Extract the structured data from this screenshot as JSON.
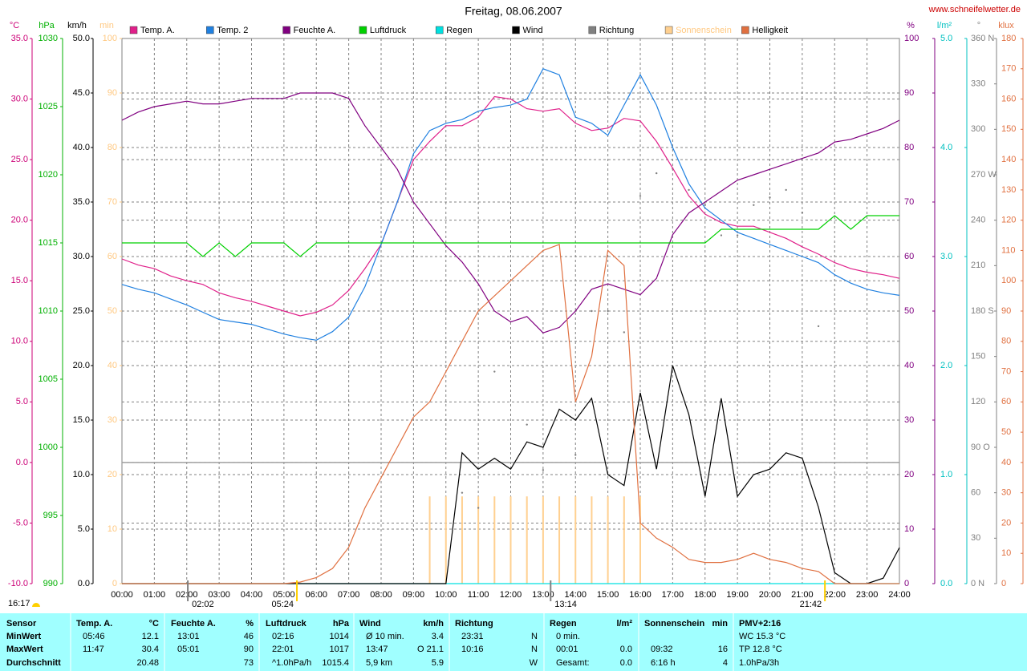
{
  "chart_data": {
    "type": "line",
    "title": "Freitag, 08.06.2007",
    "source": "www.schneifelwetter.de",
    "daylight": "16:17",
    "xlim": [
      0,
      24
    ],
    "xticks": [
      {
        "value": 0,
        "label": "00:00"
      },
      {
        "value": 1,
        "label": "01:00"
      },
      {
        "value": 2,
        "label": "02:00"
      },
      {
        "value": 3,
        "label": "03:00"
      },
      {
        "value": 4,
        "label": "04:00"
      },
      {
        "value": 5,
        "label": "05:00"
      },
      {
        "value": 6,
        "label": "06:00"
      },
      {
        "value": 7,
        "label": "07:00"
      },
      {
        "value": 8,
        "label": "08:00"
      },
      {
        "value": 9,
        "label": "09:00"
      },
      {
        "value": 10,
        "label": "10:00"
      },
      {
        "value": 11,
        "label": "11:00"
      },
      {
        "value": 12,
        "label": "12:00"
      },
      {
        "value": 13,
        "label": "13:00"
      },
      {
        "value": 14,
        "label": "14:00"
      },
      {
        "value": 15,
        "label": "15:00"
      },
      {
        "value": 16,
        "label": "16:00"
      },
      {
        "value": 17,
        "label": "17:00"
      },
      {
        "value": 18,
        "label": "18:00"
      },
      {
        "value": 19,
        "label": "19:00"
      },
      {
        "value": 20,
        "label": "20:00"
      },
      {
        "value": 21,
        "label": "21:00"
      },
      {
        "value": 22,
        "label": "22:00"
      },
      {
        "value": 23,
        "label": "23:00"
      },
      {
        "value": 24,
        "label": "24:00"
      }
    ],
    "markers": [
      {
        "x": 2.033,
        "label": "02:02",
        "color": "#808080"
      },
      {
        "x": 5.4,
        "label": "05:24",
        "color": "#ffd000"
      },
      {
        "x": 13.233,
        "label": "13:14",
        "color": "#808080"
      },
      {
        "x": 21.7,
        "label": "21:42",
        "color": "#ffd000"
      }
    ],
    "left_axes": [
      {
        "label": "°C",
        "color": "#cc0077",
        "grid": true,
        "lim": [
          -10,
          35
        ],
        "ticks": [
          {
            "value": -10,
            "label": "-10.0"
          },
          {
            "value": -5,
            "label": "-5.0"
          },
          {
            "value": 0,
            "label": "0.0"
          },
          {
            "value": 5,
            "label": "5.0"
          },
          {
            "value": 10,
            "label": "10.0"
          },
          {
            "value": 15,
            "label": "15.0"
          },
          {
            "value": 20,
            "label": "20.0"
          },
          {
            "value": 25,
            "label": "25.0"
          },
          {
            "value": 30,
            "label": "30.0"
          },
          {
            "value": 35,
            "label": "35.0"
          }
        ]
      },
      {
        "label": "hPa",
        "color": "#00b000",
        "lim": [
          990,
          1030
        ],
        "ticks": [
          990,
          995,
          1000,
          1005,
          1010,
          1015,
          1020,
          1025,
          1030
        ]
      },
      {
        "label": "km/h",
        "color": "#000000",
        "grid": true,
        "lim": [
          0,
          50
        ],
        "ticks": [
          {
            "value": 0,
            "label": "0.0"
          },
          {
            "value": 5,
            "label": "5.0"
          },
          {
            "value": 10,
            "label": "10.0"
          },
          {
            "value": 15,
            "label": "15.0"
          },
          {
            "value": 20,
            "label": "20.0"
          },
          {
            "value": 25,
            "label": "25.0"
          },
          {
            "value": 30,
            "label": "30.0"
          },
          {
            "value": 35,
            "label": "35.0"
          },
          {
            "value": 40,
            "label": "40.0"
          },
          {
            "value": 45,
            "label": "45.0"
          },
          {
            "value": 50,
            "label": "50.0"
          }
        ]
      },
      {
        "label": "min",
        "color": "#ffc880",
        "lim": [
          0,
          100
        ],
        "ticks": [
          0,
          10,
          20,
          30,
          40,
          50,
          60,
          70,
          80,
          90,
          100
        ]
      }
    ],
    "right_axes": [
      {
        "label": "%",
        "color": "#800080",
        "lim": [
          0,
          100
        ],
        "ticks": [
          0,
          10,
          20,
          30,
          40,
          50,
          60,
          70,
          80,
          90,
          100
        ]
      },
      {
        "label": "l/m²",
        "color": "#00c0c0",
        "lim": [
          0,
          5
        ],
        "ticks": [
          {
            "value": 0,
            "label": "0.0"
          },
          {
            "value": 1,
            "label": "1.0"
          },
          {
            "value": 2,
            "label": "2.0"
          },
          {
            "value": 3,
            "label": "3.0"
          },
          {
            "value": 4,
            "label": "4.0"
          },
          {
            "value": 5,
            "label": "5.0"
          }
        ]
      },
      {
        "label": "°",
        "color": "#808080",
        "lim": [
          0,
          360
        ],
        "ticks": [
          {
            "value": 0,
            "label": "0 N"
          },
          30,
          60,
          {
            "value": 90,
            "label": "90 O"
          },
          120,
          150,
          {
            "value": 180,
            "label": "180 S"
          },
          210,
          240,
          {
            "value": 270,
            "label": "270 W"
          },
          300,
          330,
          {
            "value": 360,
            "label": "360 N"
          }
        ]
      },
      {
        "label": "klux",
        "color": "#e07040",
        "lim": [
          0,
          180
        ],
        "ticks": [
          0,
          10,
          20,
          30,
          40,
          50,
          60,
          70,
          80,
          90,
          100,
          110,
          120,
          130,
          140,
          150,
          160,
          170,
          180
        ]
      }
    ],
    "x": [
      0,
      0.5,
      1,
      1.5,
      2,
      2.5,
      3,
      3.5,
      4,
      4.5,
      5,
      5.5,
      6,
      6.5,
      7,
      7.5,
      8,
      8.5,
      9,
      9.5,
      10,
      10.5,
      11,
      11.5,
      12,
      12.5,
      13,
      13.5,
      14,
      14.5,
      15,
      15.5,
      16,
      16.5,
      17,
      17.5,
      18,
      18.5,
      19,
      19.5,
      20,
      20.5,
      21,
      21.5,
      22,
      22.5,
      23,
      23.5,
      24
    ],
    "series": [
      {
        "name": "Temp. A.",
        "color": "#e0208a",
        "axis": "°C",
        "values": [
          16.8,
          16.3,
          16.0,
          15.4,
          15.0,
          14.7,
          14.0,
          13.6,
          13.3,
          12.9,
          12.5,
          12.1,
          12.4,
          13.0,
          14.2,
          16.0,
          18.0,
          21.5,
          25.0,
          26.5,
          27.8,
          27.8,
          28.5,
          30.2,
          30.0,
          29.2,
          29.0,
          29.2,
          28.0,
          27.4,
          27.6,
          28.4,
          28.2,
          26.5,
          24.3,
          22.0,
          20.5,
          19.8,
          19.5,
          19.5,
          19.0,
          18.5,
          17.8,
          17.2,
          16.5,
          16.0,
          15.7,
          15.5,
          15.2
        ]
      },
      {
        "name": "Temp. 2",
        "color": "#2080e0",
        "axis": "°C",
        "values": [
          14.7,
          14.3,
          14.0,
          13.5,
          13.0,
          12.4,
          11.8,
          11.6,
          11.4,
          11.0,
          10.6,
          10.3,
          10.1,
          10.8,
          12.0,
          14.5,
          18.0,
          21.5,
          25.5,
          27.4,
          28.0,
          28.3,
          29.0,
          29.3,
          29.5,
          30.0,
          32.5,
          32.0,
          28.5,
          28.0,
          27.0,
          29.5,
          32.0,
          29.5,
          26.0,
          23.0,
          21.0,
          20.0,
          19.0,
          18.5,
          18.0,
          17.5,
          17.0,
          16.5,
          15.5,
          14.8,
          14.3,
          14.0,
          13.8
        ]
      },
      {
        "name": "Feuchte A.",
        "color": "#800080",
        "axis": "%",
        "values": [
          85,
          86.5,
          87.5,
          88,
          88.5,
          88,
          88,
          88.5,
          89,
          89,
          89,
          90,
          90,
          90,
          89,
          84,
          80,
          76,
          70,
          66,
          62,
          59,
          55,
          50,
          48,
          49,
          46,
          47,
          50,
          54,
          55,
          54,
          53,
          56,
          64,
          68,
          70,
          72,
          74,
          75,
          76,
          77,
          78,
          79,
          81,
          81.5,
          82.5,
          83.5,
          85
        ]
      },
      {
        "name": "Luftdruck",
        "color": "#00d000",
        "axis": "hPa",
        "values": [
          1015,
          1015,
          1015,
          1015,
          1015,
          1014,
          1015,
          1014,
          1015,
          1015,
          1015,
          1014,
          1015,
          1015,
          1015,
          1015,
          1015,
          1015,
          1015,
          1015,
          1015,
          1015,
          1015,
          1015,
          1015,
          1015,
          1015,
          1015,
          1015,
          1015,
          1015,
          1015,
          1015,
          1015,
          1015,
          1015,
          1015,
          1016,
          1016,
          1016,
          1016,
          1016,
          1016,
          1016,
          1017,
          1016,
          1017,
          1017,
          1017
        ]
      },
      {
        "name": "Regen",
        "color": "#00e0e0",
        "axis": "l/m²",
        "values": [
          0,
          0,
          0,
          0,
          0,
          0,
          0,
          0,
          0,
          0,
          0,
          0,
          0,
          0,
          0,
          0,
          0,
          0,
          0,
          0,
          0,
          0,
          0,
          0,
          0,
          0,
          0,
          0,
          0,
          0,
          0,
          0,
          0,
          0,
          0,
          0,
          0,
          0,
          0,
          0,
          0,
          0,
          0,
          0,
          0,
          0,
          0,
          0,
          0
        ]
      },
      {
        "name": "Wind",
        "color": "#000000",
        "axis": "km/h",
        "values": [
          0,
          0,
          0,
          0,
          0,
          0,
          0,
          0,
          0,
          0,
          0,
          0,
          0,
          0,
          0,
          0,
          0,
          0,
          0,
          0,
          0,
          12.0,
          10.5,
          11.5,
          10.5,
          13.0,
          12.5,
          16.0,
          15.0,
          17.0,
          10.0,
          9.0,
          17.5,
          10.5,
          20.0,
          15.5,
          8.0,
          17.0,
          8.0,
          10.0,
          10.5,
          12.0,
          11.5,
          7.0,
          1.0,
          0,
          0,
          0.5,
          3.3
        ]
      },
      {
        "name": "Richtung",
        "color": "#808080",
        "axis": "°",
        "type": "dots",
        "values": [
          null,
          null,
          null,
          null,
          null,
          null,
          null,
          null,
          null,
          null,
          null,
          null,
          null,
          null,
          null,
          null,
          null,
          null,
          null,
          null,
          null,
          60,
          50,
          140,
          null,
          105,
          75,
          null,
          85,
          180,
          180,
          166,
          256,
          271,
          274,
          260,
          250,
          230,
          230,
          250,
          255,
          260,
          245,
          170,
          null,
          null,
          null,
          null,
          null
        ]
      },
      {
        "name": "Sonnenschein",
        "color": "#ffd090",
        "axis": "min",
        "type": "bar",
        "values": [
          0,
          0,
          0,
          0,
          0,
          0,
          0,
          0,
          0,
          0,
          0,
          0,
          0,
          0,
          0,
          0,
          0,
          0,
          0,
          16,
          16,
          16,
          16,
          16,
          16,
          16,
          16,
          16,
          16,
          16,
          16,
          16,
          16,
          0,
          0,
          0,
          0,
          0,
          0,
          0,
          0,
          0,
          0,
          0,
          0,
          0,
          0,
          0,
          0
        ]
      },
      {
        "name": "Helligkeit",
        "color": "#e07040",
        "axis": "klux",
        "values": [
          0,
          0,
          0,
          0,
          0,
          0,
          0,
          0,
          0,
          0,
          0,
          0.5,
          2,
          5,
          12,
          25,
          35,
          45,
          55,
          60,
          70,
          80,
          90,
          95,
          100,
          105,
          110,
          112,
          60,
          75,
          110,
          105,
          20,
          15,
          12,
          8,
          7,
          7,
          8,
          10,
          8,
          7,
          5,
          4,
          0,
          0,
          0,
          0,
          0
        ]
      }
    ]
  },
  "table": {
    "sensor": "Sensor",
    "row_labels": [
      "MinWert",
      "MaxWert",
      "Durchschnitt"
    ],
    "groups": [
      {
        "name": "Temp. A.",
        "unit": "°C",
        "rows": [
          [
            "05:46",
            "12.1"
          ],
          [
            "11:47",
            "30.4"
          ],
          [
            null,
            "20.48"
          ]
        ]
      },
      {
        "name": "Feuchte A.",
        "unit": "%",
        "rows": [
          [
            "13:01",
            "46"
          ],
          [
            "05:01",
            "90"
          ],
          [
            null,
            "73"
          ]
        ]
      },
      {
        "name": "Luftdruck",
        "unit": "hPa",
        "rows": [
          [
            "02:16",
            "1014"
          ],
          [
            "22:01",
            "1017"
          ],
          [
            "^1.0hPa/h",
            "1015.4"
          ]
        ]
      },
      {
        "name": "Wind",
        "unit": "km/h",
        "rows": [
          [
            "Ø 10 min.",
            "3.4"
          ],
          [
            "13:47",
            "O 21.1"
          ],
          [
            "5,9 km",
            "5.9"
          ]
        ]
      },
      {
        "name": "Richtung",
        "rows": [
          [
            "23:31",
            "N"
          ],
          [
            "10:16",
            "N"
          ],
          [
            null,
            "W"
          ]
        ]
      },
      {
        "name": "Regen",
        "unit": "l/m²",
        "rows": [
          [
            "0 min.",
            null
          ],
          [
            "00:01",
            "0.0"
          ],
          [
            "Gesamt:",
            "0.0"
          ]
        ]
      },
      {
        "name": "Sonnenschein",
        "unit": "min",
        "rows": [
          [
            null,
            null
          ],
          [
            "09:32",
            "16"
          ],
          [
            "6:16 h",
            "4"
          ]
        ]
      },
      {
        "name": "PMV+2:16",
        "rows": [
          [
            "WC 15.3 °C"
          ],
          [
            "TP 12.8 °C"
          ],
          [
            "1.0hPa/3h"
          ]
        ]
      }
    ]
  }
}
